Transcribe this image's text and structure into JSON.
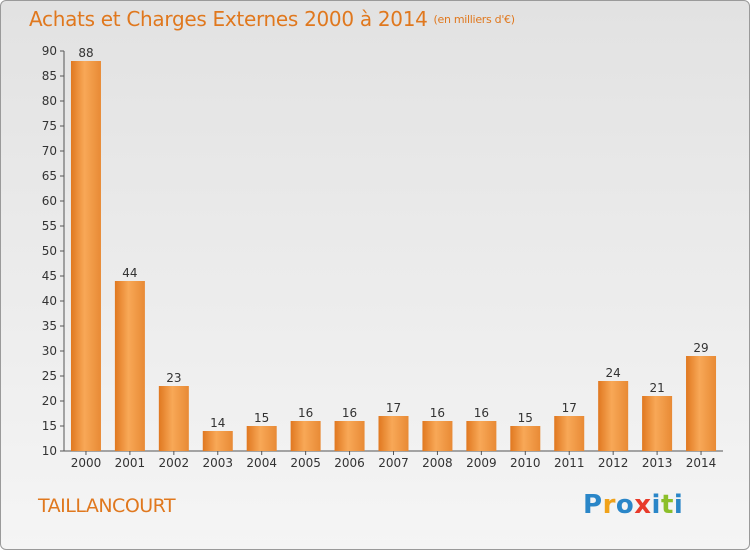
{
  "title": "Achats et Charges Externes 2000 à 2014",
  "subtitle": "(en milliers d'€)",
  "city": "TAILLANCOURT",
  "logo": {
    "letters": [
      "P",
      "r",
      "o",
      "x",
      "i",
      "t",
      "i"
    ],
    "colors": [
      "#2a86c8",
      "#f0a21a",
      "#2a86c8",
      "#e83a2a",
      "#2a86c8",
      "#8cbf2a",
      "#2a86c8"
    ]
  },
  "colors": {
    "bar_light": "#f8a857",
    "bar_dark": "#e07820",
    "title": "#e0781e"
  },
  "chart_data": {
    "type": "bar",
    "categories": [
      "2000",
      "2001",
      "2002",
      "2003",
      "2004",
      "2005",
      "2006",
      "2007",
      "2008",
      "2009",
      "2010",
      "2011",
      "2012",
      "2013",
      "2014"
    ],
    "values": [
      88,
      44,
      23,
      14,
      15,
      16,
      16,
      17,
      16,
      16,
      15,
      17,
      24,
      21,
      29
    ],
    "title": "Achats et Charges Externes 2000 à 2014",
    "xlabel": "",
    "ylabel": "",
    "ylim": [
      10,
      90
    ],
    "yticks": [
      10,
      15,
      20,
      25,
      30,
      35,
      40,
      45,
      50,
      55,
      60,
      65,
      70,
      75,
      80,
      85,
      90
    ],
    "grid": false,
    "legend": "none"
  }
}
